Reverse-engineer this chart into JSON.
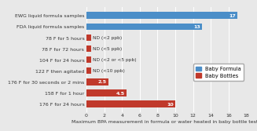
{
  "categories": [
    "EWG liquid formula samples",
    "FDA liquid formula samples",
    "78 F for 5 hours",
    "78 F for 72 hours",
    "104 F for 24 hours",
    "122 F then agitated",
    "176 F for 30 seconds or 2 mins",
    "158 F for 1 hour",
    "176 F for 24 hours"
  ],
  "values": [
    17,
    13,
    0.5,
    0.5,
    0.5,
    0.5,
    2.5,
    4.5,
    10
  ],
  "colors": [
    "#4b8ec8",
    "#4b8ec8",
    "#c0392b",
    "#c0392b",
    "#c0392b",
    "#c0392b",
    "#c0392b",
    "#c0392b",
    "#c0392b"
  ],
  "bar_labels": [
    "17",
    "13",
    "ND (<2 ppb)",
    "ND (<5 ppb)",
    "ND (<2 or <5 ppb)",
    "ND (<10 ppb)",
    "2.5",
    "4.5",
    "10"
  ],
  "show_value_inside": [
    true,
    true,
    false,
    false,
    false,
    false,
    true,
    true,
    true
  ],
  "nd_labels": [
    "ND (<2 ppb)",
    "ND (<5 ppb)",
    "ND (<2 or <5 ppb)",
    "ND (<10 ppb)"
  ],
  "nd_indices": [
    2,
    3,
    4,
    5
  ],
  "xlabel": "Maximum BPA measurement in formula or water heated in baby bottle tests",
  "xlim": [
    0,
    18
  ],
  "xticks": [
    0,
    2,
    4,
    6,
    8,
    10,
    12,
    14,
    16,
    18
  ],
  "legend_labels": [
    "Baby Formula",
    "Baby Bottles"
  ],
  "legend_colors": [
    "#4b8ec8",
    "#c0392b"
  ],
  "background_color": "#e8e8e8",
  "plot_bg_color": "#e8e8e8",
  "grid_color": "#ffffff",
  "bar_height": 0.6,
  "xlabel_fontsize": 4.5,
  "tick_fontsize": 4.5,
  "ylabel_fontsize": 4.5,
  "label_fontsize": 4.5,
  "nd_fontsize": 4.2,
  "legend_fontsize": 4.8
}
